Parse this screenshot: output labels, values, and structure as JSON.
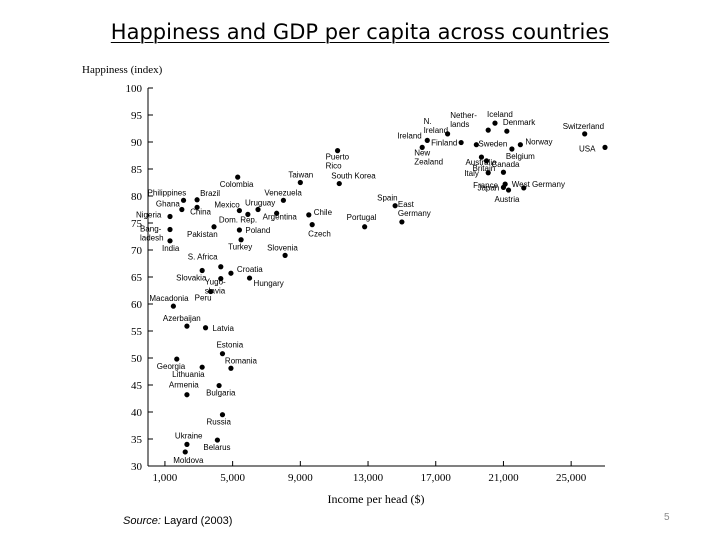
{
  "slide": {
    "title": "Happiness and GDP per capita across countries",
    "page_number": "5",
    "source_label": "Source:",
    "source_text": " Layard (2003)"
  },
  "chart_data": {
    "type": "scatter",
    "title": "Happiness and GDP per capita across countries",
    "xlabel": "Income per head ($)",
    "ylabel": "Happiness (index)",
    "xlim": [
      0,
      27000
    ],
    "ylim": [
      30,
      100
    ],
    "x_ticks": [
      1000,
      5000,
      9000,
      13000,
      17000,
      21000,
      25000
    ],
    "x_tick_labels": [
      "1,000",
      "5,000",
      "9,000",
      "13,000",
      "17,000",
      "21,000",
      "25,000"
    ],
    "y_ticks": [
      30,
      35,
      40,
      45,
      50,
      55,
      60,
      65,
      70,
      75,
      80,
      85,
      90,
      95,
      100
    ],
    "grid": false,
    "points": [
      {
        "label": "Iceland",
        "x": 20500,
        "y": 93.5
      },
      {
        "label": "Switzerland",
        "x": 25800,
        "y": 91.5
      },
      {
        "label": "USA",
        "x": 27000,
        "y": 89
      },
      {
        "label": "Denmark",
        "x": 21200,
        "y": 92
      },
      {
        "label": "Norway",
        "x": 22000,
        "y": 89.5
      },
      {
        "label": "Belgium",
        "x": 21500,
        "y": 88.7
      },
      {
        "label": "N. Ireland",
        "x": 17700,
        "y": 91.5
      },
      {
        "label": "Netherlands",
        "x": 20100,
        "y": 92.2
      },
      {
        "label": "Ireland",
        "x": 16500,
        "y": 90.3
      },
      {
        "label": "Finland",
        "x": 18500,
        "y": 89.9
      },
      {
        "label": "Sweden",
        "x": 19400,
        "y": 89.5
      },
      {
        "label": "Australia",
        "x": 19700,
        "y": 87.2
      },
      {
        "label": "New Zealand",
        "x": 16200,
        "y": 89
      },
      {
        "label": "Britain",
        "x": 20000,
        "y": 86.5
      },
      {
        "label": "Italy",
        "x": 20100,
        "y": 84.3
      },
      {
        "label": "Canada",
        "x": 21000,
        "y": 84.4
      },
      {
        "label": "France",
        "x": 21100,
        "y": 82.2
      },
      {
        "label": "West Germany",
        "x": 22200,
        "y": 81.5
      },
      {
        "label": "Japan",
        "x": 21000,
        "y": 81.6
      },
      {
        "label": "Austria",
        "x": 21300,
        "y": 81.1
      },
      {
        "label": "Puerto Rico",
        "x": 11200,
        "y": 88.4
      },
      {
        "label": "Taiwan",
        "x": 9000,
        "y": 82.5
      },
      {
        "label": "South Korea",
        "x": 11300,
        "y": 82.3
      },
      {
        "label": "Spain",
        "x": 14600,
        "y": 78.2
      },
      {
        "label": "East Germany",
        "x": 15000,
        "y": 75.2
      },
      {
        "label": "Portugal",
        "x": 12800,
        "y": 74.3
      },
      {
        "label": "Colombia",
        "x": 5300,
        "y": 83.5
      },
      {
        "label": "Venezuela",
        "x": 8000,
        "y": 79.2
      },
      {
        "label": "Mexico",
        "x": 5400,
        "y": 77.3
      },
      {
        "label": "Uruguay",
        "x": 6500,
        "y": 77.5
      },
      {
        "label": "Dom. Rep.",
        "x": 5900,
        "y": 76.6
      },
      {
        "label": "Argentina",
        "x": 7600,
        "y": 76.8
      },
      {
        "label": "Chile",
        "x": 9500,
        "y": 76.5
      },
      {
        "label": "Czech",
        "x": 9700,
        "y": 74.7
      },
      {
        "label": "Poland",
        "x": 5400,
        "y": 73.7
      },
      {
        "label": "Turkey",
        "x": 5500,
        "y": 71.9
      },
      {
        "label": "Slovenia",
        "x": 8100,
        "y": 69
      },
      {
        "label": "Pakistan",
        "x": 3900,
        "y": 74.3
      },
      {
        "label": "Philippines",
        "x": 2100,
        "y": 79.2
      },
      {
        "label": "Brazil",
        "x": 2900,
        "y": 79.3
      },
      {
        "label": "Ghana",
        "x": 2000,
        "y": 77.5
      },
      {
        "label": "China",
        "x": 2900,
        "y": 77.9
      },
      {
        "label": "Nigeria",
        "x": 1300,
        "y": 76.2
      },
      {
        "label": "Bangladesh",
        "x": 1300,
        "y": 73.8
      },
      {
        "label": "India",
        "x": 1300,
        "y": 71.7
      },
      {
        "label": "S. Africa",
        "x": 4300,
        "y": 66.9
      },
      {
        "label": "Croatia",
        "x": 4900,
        "y": 65.7
      },
      {
        "label": "Slovakia",
        "x": 3200,
        "y": 66.2
      },
      {
        "label": "Yugoslavia",
        "x": 4300,
        "y": 64.7
      },
      {
        "label": "Hungary",
        "x": 6000,
        "y": 64.8
      },
      {
        "label": "Peru",
        "x": 3700,
        "y": 62.3
      },
      {
        "label": "Macadonia",
        "x": 1500,
        "y": 59.6
      },
      {
        "label": "Azerbaijan",
        "x": 2300,
        "y": 55.9
      },
      {
        "label": "Latvia",
        "x": 3400,
        "y": 55.6
      },
      {
        "label": "Estonia",
        "x": 4400,
        "y": 50.8
      },
      {
        "label": "Georgia",
        "x": 1700,
        "y": 49.8
      },
      {
        "label": "Romania",
        "x": 4900,
        "y": 48.1
      },
      {
        "label": "Lithuania",
        "x": 3200,
        "y": 48.3
      },
      {
        "label": "Armenia",
        "x": 2300,
        "y": 43.2
      },
      {
        "label": "Bulgaria",
        "x": 4200,
        "y": 44.9
      },
      {
        "label": "Russia",
        "x": 4400,
        "y": 39.5
      },
      {
        "label": "Ukraine",
        "x": 2300,
        "y": 34
      },
      {
        "label": "Belarus",
        "x": 4100,
        "y": 34.8
      },
      {
        "label": "Moldova",
        "x": 2200,
        "y": 32.6
      }
    ]
  }
}
